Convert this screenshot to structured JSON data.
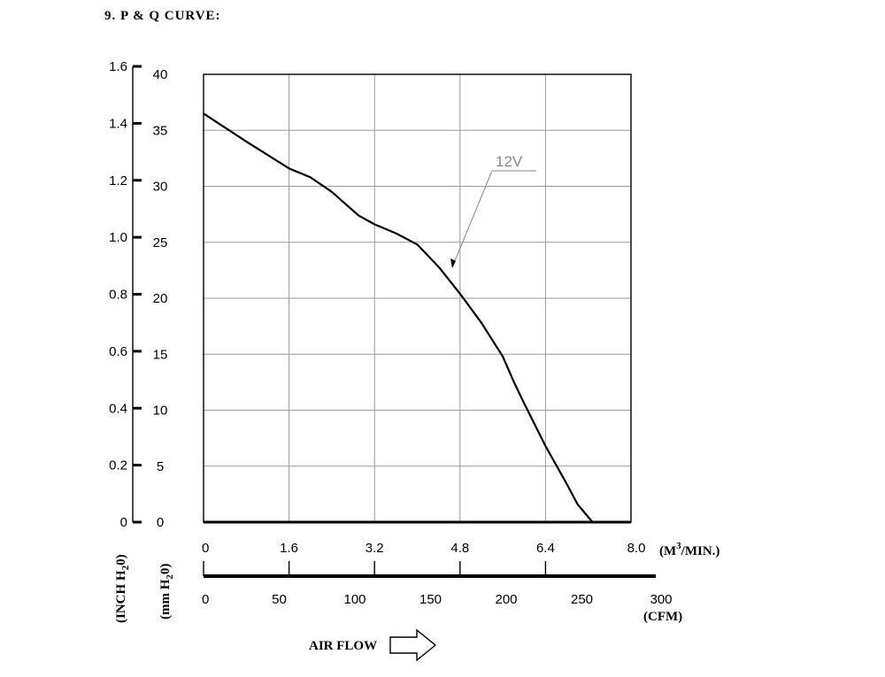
{
  "title": "9. P & Q CURVE:",
  "chart_data": {
    "type": "line",
    "y_left_ticks": [
      "0",
      "0.2",
      "0.4",
      "0.6",
      "0.8",
      "1.0",
      "1.2",
      "1.4",
      "1.6"
    ],
    "y_left_label": "(INCH H",
    "y_left_label_sub": "2",
    "y_left_label_end": "0)",
    "y_right_ticks": [
      "0",
      "5",
      "10",
      "15",
      "20",
      "25",
      "30",
      "35",
      "40"
    ],
    "y_right_label": "(mm H",
    "y_right_label_sub": "2",
    "y_right_label_end": "0)",
    "x_top_ticks": [
      "0",
      "1.6",
      "3.2",
      "4.8",
      "6.4",
      "8.0"
    ],
    "x_top_unit": "(M",
    "x_top_unit_sup": "3",
    "x_top_unit_end": "/MIN.)",
    "x_bottom_ticks": [
      "0",
      "50",
      "100",
      "150",
      "200",
      "250",
      "300"
    ],
    "x_bottom_unit": "(CFM)",
    "xlim": [
      0,
      8.0
    ],
    "ylim": [
      0,
      40
    ],
    "grid": true,
    "series": [
      {
        "name": "12V",
        "x": [
          0,
          0.8,
          1.6,
          2.0,
          2.4,
          2.9,
          3.2,
          3.6,
          4.0,
          4.4,
          4.8,
          5.2,
          5.6,
          5.8,
          6.0,
          6.4,
          6.8,
          7.0,
          7.28
        ],
        "y": [
          36.5,
          34.0,
          31.6,
          30.8,
          29.5,
          27.4,
          26.6,
          25.8,
          24.8,
          22.8,
          20.4,
          17.8,
          14.8,
          12.6,
          10.6,
          6.8,
          3.4,
          1.6,
          0
        ]
      }
    ],
    "annotation": "12V",
    "footer_label": "AIR FLOW"
  }
}
